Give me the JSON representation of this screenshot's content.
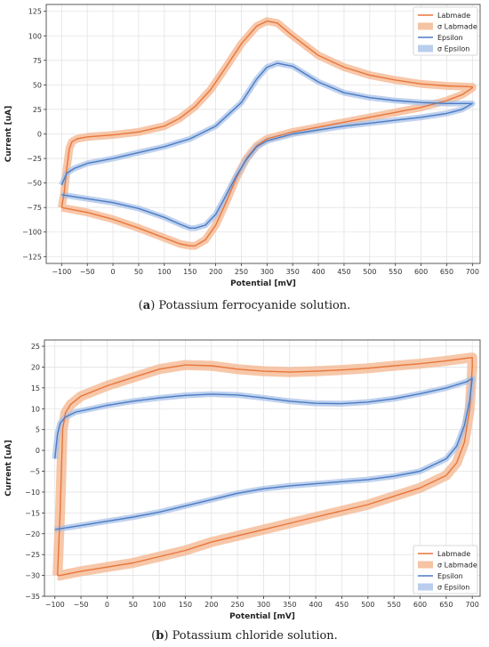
{
  "chart_data": [
    {
      "type": "line",
      "panel_label": "a",
      "caption": "Potassium ferrocyanide solution.",
      "xlabel": "Potential [mV]",
      "ylabel": "Current [uA]",
      "xlim": [
        -130,
        715
      ],
      "ylim": [
        -132,
        132
      ],
      "xticks": [
        -100,
        -50,
        0,
        50,
        100,
        150,
        200,
        250,
        300,
        350,
        400,
        450,
        500,
        550,
        600,
        650,
        700
      ],
      "yticks": [
        -125,
        -100,
        -75,
        -50,
        -25,
        0,
        25,
        50,
        75,
        100,
        125
      ],
      "grid": true,
      "legend_position": "top-right",
      "legend": [
        "Labmade",
        "σ Labmade",
        "Epsilon",
        "σ Epsilon"
      ],
      "series": [
        {
          "name": "Labmade",
          "color": "#e8763a",
          "band_color": "#f4b48c",
          "sigma": 4,
          "x": [
            -100,
            -95,
            -90,
            -85,
            -80,
            -70,
            -50,
            0,
            50,
            100,
            130,
            160,
            190,
            220,
            250,
            280,
            300,
            320,
            350,
            400,
            450,
            500,
            550,
            600,
            650,
            700,
            700,
            680,
            650,
            600,
            550,
            500,
            450,
            400,
            350,
            300,
            280,
            260,
            240,
            220,
            200,
            180,
            160,
            150,
            130,
            100,
            50,
            0,
            -50,
            -90,
            -100
          ],
          "y": [
            -75,
            -60,
            -35,
            -15,
            -8,
            -5,
            -3,
            -1,
            2,
            8,
            16,
            28,
            45,
            68,
            92,
            110,
            115,
            113,
            100,
            80,
            68,
            60,
            55,
            51,
            49,
            48,
            47,
            40,
            34,
            27,
            22,
            17,
            12,
            7,
            2,
            -5,
            -12,
            -25,
            -45,
            -70,
            -93,
            -108,
            -114,
            -114,
            -112,
            -106,
            -96,
            -87,
            -80,
            -76,
            -75
          ]
        },
        {
          "name": "Epsilon",
          "color": "#4a7cc3",
          "band_color": "#a9c1e8",
          "sigma": 3,
          "x": [
            -100,
            -90,
            -75,
            -50,
            0,
            50,
            100,
            150,
            200,
            250,
            280,
            300,
            320,
            350,
            400,
            450,
            500,
            550,
            600,
            650,
            700,
            700,
            680,
            650,
            600,
            550,
            500,
            450,
            400,
            350,
            300,
            280,
            260,
            240,
            220,
            200,
            180,
            160,
            150,
            130,
            100,
            50,
            0,
            -50,
            -100
          ],
          "y": [
            -52,
            -40,
            -35,
            -30,
            -25,
            -19,
            -13,
            -5,
            8,
            32,
            56,
            68,
            72,
            69,
            53,
            42,
            37,
            34,
            32,
            31,
            31,
            31,
            25,
            21,
            17,
            14,
            11,
            8,
            4,
            0,
            -7,
            -13,
            -26,
            -43,
            -63,
            -82,
            -93,
            -96,
            -96,
            -92,
            -85,
            -76,
            -70,
            -66,
            -62
          ]
        }
      ]
    },
    {
      "type": "line",
      "panel_label": "b",
      "caption": "Potassium chloride solution.",
      "xlabel": "Potential [mV]",
      "ylabel": "Current [uA]",
      "xlim": [
        -120,
        715
      ],
      "ylim": [
        -35,
        26.5
      ],
      "xticks": [
        -100,
        -50,
        0,
        50,
        100,
        150,
        200,
        250,
        300,
        350,
        400,
        450,
        500,
        550,
        600,
        650,
        700
      ],
      "yticks": [
        -35,
        -30,
        -25,
        -20,
        -15,
        -10,
        -5,
        0,
        5,
        10,
        15,
        20,
        25
      ],
      "grid": true,
      "legend_position": "bottom-right",
      "legend": [
        "Labmade",
        "σ Labmade",
        "Epsilon",
        "σ Epsilon"
      ],
      "series": [
        {
          "name": "Labmade",
          "color": "#e8763a",
          "band_color": "#f4b48c",
          "sigma": 1.2,
          "x": [
            -95,
            -90,
            -85,
            -80,
            -70,
            -50,
            0,
            50,
            100,
            150,
            200,
            250,
            300,
            350,
            400,
            450,
            500,
            550,
            600,
            650,
            700,
            700,
            695,
            685,
            670,
            650,
            600,
            550,
            500,
            450,
            400,
            350,
            300,
            250,
            200,
            150,
            100,
            50,
            0,
            -50,
            -90,
            -95
          ],
          "y": [
            -30,
            -15,
            5,
            9,
            11,
            13,
            15.5,
            17.5,
            19.5,
            20.5,
            20.3,
            19.5,
            19,
            18.8,
            19,
            19.3,
            19.7,
            20.3,
            20.8,
            21.5,
            22.3,
            20,
            10,
            2,
            -3,
            -6,
            -9,
            -11,
            -13,
            -14.5,
            -16,
            -17.5,
            -19,
            -20.5,
            -22,
            -24,
            -25.5,
            -27,
            -28,
            -29,
            -30,
            -30
          ]
        },
        {
          "name": "Epsilon",
          "color": "#4a7cc3",
          "band_color": "#a9c1e8",
          "sigma": 0.7,
          "x": [
            -100,
            -95,
            -90,
            -80,
            -60,
            -30,
            0,
            50,
            100,
            150,
            200,
            250,
            300,
            350,
            400,
            450,
            500,
            550,
            600,
            650,
            690,
            700,
            695,
            685,
            670,
            650,
            600,
            550,
            500,
            450,
            400,
            350,
            300,
            250,
            200,
            150,
            100,
            50,
            0,
            -50,
            -100
          ],
          "y": [
            -2,
            4,
            6.5,
            8,
            9.2,
            10,
            10.8,
            11.8,
            12.6,
            13.2,
            13.5,
            13.3,
            12.6,
            11.8,
            11.3,
            11.2,
            11.6,
            12.4,
            13.6,
            15,
            16.5,
            17.3,
            12,
            6,
            1,
            -2,
            -5,
            -6.2,
            -7,
            -7.5,
            -8,
            -8.5,
            -9.2,
            -10.3,
            -11.8,
            -13.3,
            -14.8,
            -16,
            -17,
            -18,
            -19
          ]
        }
      ]
    }
  ]
}
